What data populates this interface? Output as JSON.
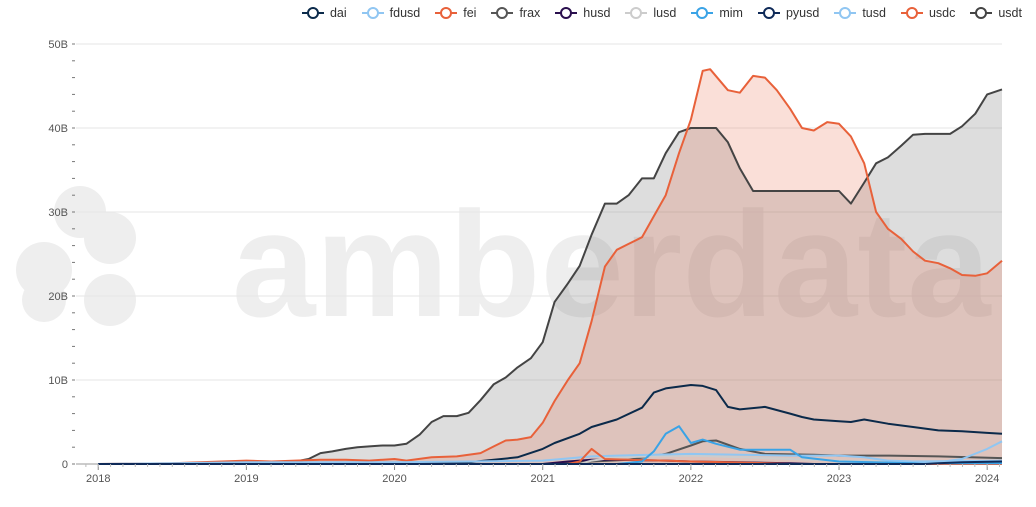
{
  "watermark": "amberdata",
  "chart_data": {
    "type": "area",
    "title": "",
    "xlabel": "",
    "ylabel": "",
    "x_ticks": [
      "2018",
      "2019",
      "2020",
      "2021",
      "2022",
      "2023",
      "2024"
    ],
    "y_ticks": [
      "0",
      "10B",
      "20B",
      "30B",
      "40B",
      "50B"
    ],
    "ylim": [
      0,
      50
    ],
    "xlim": [
      2017.85,
      2024.1
    ],
    "grid": true,
    "legend_placement": "top-right",
    "series": [
      {
        "name": "dai",
        "color": "#0b2a4a",
        "fill": false,
        "points": [
          [
            2018.0,
            0
          ],
          [
            2019.0,
            0
          ],
          [
            2020.0,
            0
          ],
          [
            2020.5,
            0.2
          ],
          [
            2020.67,
            0.5
          ],
          [
            2020.83,
            0.8
          ],
          [
            2021.0,
            1.8
          ],
          [
            2021.08,
            2.5
          ],
          [
            2021.25,
            3.6
          ],
          [
            2021.33,
            4.4
          ],
          [
            2021.5,
            5.3
          ],
          [
            2021.67,
            6.7
          ],
          [
            2021.75,
            8.5
          ],
          [
            2021.83,
            9.0
          ],
          [
            2022.0,
            9.4
          ],
          [
            2022.08,
            9.3
          ],
          [
            2022.17,
            8.8
          ],
          [
            2022.25,
            6.8
          ],
          [
            2022.33,
            6.5
          ],
          [
            2022.5,
            6.8
          ],
          [
            2022.67,
            6.0
          ],
          [
            2022.75,
            5.6
          ],
          [
            2022.83,
            5.3
          ],
          [
            2023.0,
            5.1
          ],
          [
            2023.08,
            5.0
          ],
          [
            2023.17,
            5.3
          ],
          [
            2023.33,
            4.8
          ],
          [
            2023.5,
            4.4
          ],
          [
            2023.67,
            4.0
          ],
          [
            2023.83,
            3.9
          ],
          [
            2024.0,
            3.7
          ],
          [
            2024.1,
            3.6
          ]
        ]
      },
      {
        "name": "fdusd",
        "color": "#90c6f2",
        "fill": false,
        "points": [
          [
            2018.0,
            0
          ],
          [
            2023.5,
            0
          ],
          [
            2023.67,
            0.2
          ],
          [
            2023.83,
            0.6
          ],
          [
            2024.0,
            1.8
          ],
          [
            2024.1,
            2.7
          ]
        ]
      },
      {
        "name": "fei",
        "color": "#e8613a",
        "fill": false,
        "points": [
          [
            2018.0,
            0
          ],
          [
            2021.17,
            0
          ],
          [
            2021.25,
            0.3
          ],
          [
            2021.33,
            1.8
          ],
          [
            2021.42,
            0.6
          ],
          [
            2021.58,
            0.5
          ],
          [
            2021.83,
            0.4
          ],
          [
            2022.0,
            0.3
          ],
          [
            2022.25,
            0.2
          ],
          [
            2022.5,
            0.1
          ],
          [
            2022.67,
            0
          ],
          [
            2024.1,
            0
          ]
        ]
      },
      {
        "name": "frax",
        "color": "#555555",
        "fill": false,
        "points": [
          [
            2018.0,
            0
          ],
          [
            2021.0,
            0
          ],
          [
            2021.17,
            0.1
          ],
          [
            2021.33,
            0.3
          ],
          [
            2021.58,
            0.5
          ],
          [
            2021.83,
            1.2
          ],
          [
            2022.0,
            2.2
          ],
          [
            2022.08,
            2.7
          ],
          [
            2022.17,
            2.8
          ],
          [
            2022.33,
            1.8
          ],
          [
            2022.5,
            1.2
          ],
          [
            2022.83,
            1.1
          ],
          [
            2023.0,
            1.0
          ],
          [
            2023.33,
            1.0
          ],
          [
            2023.67,
            0.9
          ],
          [
            2024.1,
            0.7
          ]
        ]
      },
      {
        "name": "husd",
        "color": "#2a0f4e",
        "fill": false,
        "points": [
          [
            2018.0,
            0
          ],
          [
            2021.0,
            0
          ],
          [
            2021.17,
            0.3
          ],
          [
            2021.33,
            0.5
          ],
          [
            2021.5,
            0.5
          ],
          [
            2021.83,
            0.4
          ],
          [
            2022.0,
            0.3
          ],
          [
            2022.33,
            0.2
          ],
          [
            2022.67,
            0.1
          ],
          [
            2022.83,
            0
          ],
          [
            2024.1,
            0
          ]
        ]
      },
      {
        "name": "lusd",
        "color": "#cccccc",
        "fill": false,
        "points": [
          [
            2018.0,
            0
          ],
          [
            2021.25,
            0
          ],
          [
            2021.33,
            0.4
          ],
          [
            2021.5,
            0.8
          ],
          [
            2022.0,
            1.0
          ],
          [
            2022.5,
            0.7
          ],
          [
            2023.0,
            0.4
          ],
          [
            2023.5,
            0.3
          ],
          [
            2024.1,
            0.3
          ]
        ]
      },
      {
        "name": "mim",
        "color": "#3aa3e6",
        "fill": false,
        "points": [
          [
            2018.0,
            0
          ],
          [
            2021.5,
            0
          ],
          [
            2021.67,
            0.3
          ],
          [
            2021.75,
            1.5
          ],
          [
            2021.83,
            3.6
          ],
          [
            2021.92,
            4.5
          ],
          [
            2022.0,
            2.5
          ],
          [
            2022.08,
            2.9
          ],
          [
            2022.17,
            2.4
          ],
          [
            2022.33,
            1.7
          ],
          [
            2022.5,
            1.7
          ],
          [
            2022.67,
            1.7
          ],
          [
            2022.75,
            0.8
          ],
          [
            2023.0,
            0.3
          ],
          [
            2023.5,
            0.1
          ],
          [
            2024.1,
            0.1
          ]
        ]
      },
      {
        "name": "pyusd",
        "color": "#0f2a58",
        "fill": false,
        "points": [
          [
            2018.0,
            0
          ],
          [
            2023.58,
            0
          ],
          [
            2023.67,
            0.1
          ],
          [
            2023.83,
            0.2
          ],
          [
            2024.1,
            0.3
          ]
        ]
      },
      {
        "name": "tusd",
        "color": "#90c6f2",
        "fill": false,
        "points": [
          [
            2018.0,
            0
          ],
          [
            2018.5,
            0.1
          ],
          [
            2019.0,
            0.2
          ],
          [
            2019.5,
            0.2
          ],
          [
            2020.0,
            0.2
          ],
          [
            2020.5,
            0.3
          ],
          [
            2021.0,
            0.4
          ],
          [
            2021.33,
            0.9
          ],
          [
            2021.5,
            1.0
          ],
          [
            2022.0,
            1.2
          ],
          [
            2022.33,
            1.1
          ],
          [
            2022.67,
            1.0
          ],
          [
            2023.0,
            1.0
          ],
          [
            2023.17,
            0.8
          ],
          [
            2023.33,
            0.4
          ],
          [
            2023.5,
            0.3
          ],
          [
            2024.1,
            0.4
          ]
        ]
      },
      {
        "name": "usdc",
        "color": "#e8613a",
        "fill": "rgba(232,97,58,0.2)",
        "points": [
          [
            2018.0,
            0
          ],
          [
            2018.5,
            0.1
          ],
          [
            2018.83,
            0.3
          ],
          [
            2019.0,
            0.4
          ],
          [
            2019.17,
            0.3
          ],
          [
            2019.33,
            0.4
          ],
          [
            2019.5,
            0.5
          ],
          [
            2019.67,
            0.5
          ],
          [
            2019.83,
            0.4
          ],
          [
            2020.0,
            0.6
          ],
          [
            2020.08,
            0.4
          ],
          [
            2020.25,
            0.8
          ],
          [
            2020.42,
            0.9
          ],
          [
            2020.58,
            1.3
          ],
          [
            2020.67,
            2.1
          ],
          [
            2020.75,
            2.8
          ],
          [
            2020.83,
            2.9
          ],
          [
            2020.92,
            3.2
          ],
          [
            2021.0,
            4.9
          ],
          [
            2021.08,
            7.5
          ],
          [
            2021.17,
            10.0
          ],
          [
            2021.25,
            12.0
          ],
          [
            2021.33,
            17.0
          ],
          [
            2021.42,
            23.5
          ],
          [
            2021.5,
            25.5
          ],
          [
            2021.58,
            26.2
          ],
          [
            2021.67,
            27.0
          ],
          [
            2021.75,
            29.5
          ],
          [
            2021.83,
            32.0
          ],
          [
            2021.92,
            37.0
          ],
          [
            2022.0,
            41.0
          ],
          [
            2022.08,
            46.8
          ],
          [
            2022.13,
            47.0
          ],
          [
            2022.25,
            44.5
          ],
          [
            2022.33,
            44.2
          ],
          [
            2022.42,
            46.2
          ],
          [
            2022.5,
            46.0
          ],
          [
            2022.58,
            44.5
          ],
          [
            2022.67,
            42.3
          ],
          [
            2022.75,
            40.0
          ],
          [
            2022.83,
            39.7
          ],
          [
            2022.92,
            40.7
          ],
          [
            2023.0,
            40.5
          ],
          [
            2023.08,
            39.0
          ],
          [
            2023.17,
            35.8
          ],
          [
            2023.25,
            30.0
          ],
          [
            2023.33,
            28.0
          ],
          [
            2023.42,
            26.8
          ],
          [
            2023.5,
            25.3
          ],
          [
            2023.58,
            24.2
          ],
          [
            2023.67,
            23.9
          ],
          [
            2023.75,
            23.3
          ],
          [
            2023.83,
            22.5
          ],
          [
            2023.92,
            22.4
          ],
          [
            2024.0,
            22.7
          ],
          [
            2024.1,
            24.2
          ]
        ]
      },
      {
        "name": "usdt",
        "color": "#444444",
        "fill": "rgba(120,120,120,0.25)",
        "points": [
          [
            2018.0,
            0
          ],
          [
            2018.5,
            0
          ],
          [
            2019.0,
            0
          ],
          [
            2019.17,
            0.1
          ],
          [
            2019.33,
            0.3
          ],
          [
            2019.42,
            0.6
          ],
          [
            2019.5,
            1.3
          ],
          [
            2019.58,
            1.5
          ],
          [
            2019.67,
            1.8
          ],
          [
            2019.75,
            2.0
          ],
          [
            2019.83,
            2.1
          ],
          [
            2019.92,
            2.2
          ],
          [
            2020.0,
            2.2
          ],
          [
            2020.08,
            2.4
          ],
          [
            2020.17,
            3.5
          ],
          [
            2020.25,
            5.0
          ],
          [
            2020.33,
            5.7
          ],
          [
            2020.42,
            5.7
          ],
          [
            2020.5,
            6.1
          ],
          [
            2020.58,
            7.6
          ],
          [
            2020.67,
            9.5
          ],
          [
            2020.75,
            10.3
          ],
          [
            2020.83,
            11.5
          ],
          [
            2020.92,
            12.6
          ],
          [
            2021.0,
            14.5
          ],
          [
            2021.08,
            19.3
          ],
          [
            2021.17,
            21.5
          ],
          [
            2021.25,
            23.6
          ],
          [
            2021.33,
            27.3
          ],
          [
            2021.42,
            31.0
          ],
          [
            2021.5,
            31.0
          ],
          [
            2021.58,
            32.0
          ],
          [
            2021.67,
            34.0
          ],
          [
            2021.75,
            34.0
          ],
          [
            2021.83,
            37.0
          ],
          [
            2021.92,
            39.5
          ],
          [
            2022.0,
            40.0
          ],
          [
            2022.08,
            40.0
          ],
          [
            2022.17,
            40.0
          ],
          [
            2022.25,
            38.3
          ],
          [
            2022.33,
            35.2
          ],
          [
            2022.42,
            32.5
          ],
          [
            2022.5,
            32.5
          ],
          [
            2022.67,
            32.5
          ],
          [
            2022.83,
            32.5
          ],
          [
            2023.0,
            32.5
          ],
          [
            2023.08,
            31.0
          ],
          [
            2023.17,
            33.5
          ],
          [
            2023.25,
            35.8
          ],
          [
            2023.33,
            36.5
          ],
          [
            2023.42,
            37.9
          ],
          [
            2023.5,
            39.2
          ],
          [
            2023.58,
            39.3
          ],
          [
            2023.67,
            39.3
          ],
          [
            2023.75,
            39.3
          ],
          [
            2023.83,
            40.2
          ],
          [
            2023.92,
            41.7
          ],
          [
            2024.0,
            44.0
          ],
          [
            2024.1,
            44.6
          ]
        ]
      }
    ]
  }
}
